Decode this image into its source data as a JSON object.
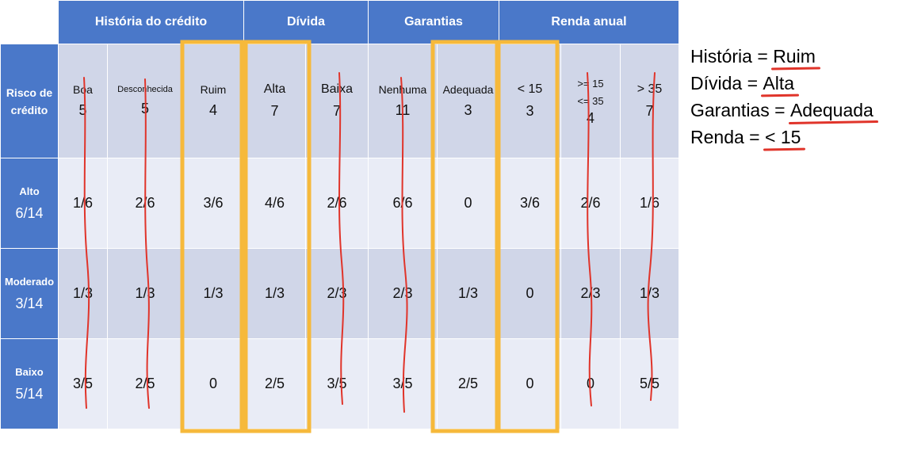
{
  "table": {
    "corner_line1": "Risco de",
    "corner_line2": "crédito",
    "groups": [
      {
        "label": "História do crédito",
        "span": 3
      },
      {
        "label": "Dívida",
        "span": 2
      },
      {
        "label": "Garantias",
        "span": 2
      },
      {
        "label": "Renda anual",
        "span": 3
      }
    ],
    "attributes": [
      {
        "name": "Boa",
        "count": "5"
      },
      {
        "name": "Desconhecida",
        "count": "5"
      },
      {
        "name": "Ruim",
        "count": "4"
      },
      {
        "name": "Alta",
        "count": "7"
      },
      {
        "name": "Baixa",
        "count": "7"
      },
      {
        "name": "Nenhuma",
        "count": "11"
      },
      {
        "name": "Adequada",
        "count": "3"
      },
      {
        "name": "< 15",
        "count": "3"
      },
      {
        "name": ">= 15",
        "name2": "<= 35",
        "count": "4"
      },
      {
        "name": "> 35",
        "count": "7"
      }
    ],
    "rows": [
      {
        "label": "Alto",
        "fraction": "6/14",
        "values": [
          "1/6",
          "2/6",
          "3/6",
          "4/6",
          "2/6",
          "6/6",
          "0",
          "3/6",
          "2/6",
          "1/6"
        ]
      },
      {
        "label": "Moderado",
        "fraction": "3/14",
        "values": [
          "1/3",
          "1/3",
          "1/3",
          "1/3",
          "2/3",
          "2/3",
          "1/3",
          "0",
          "2/3",
          "1/3"
        ]
      },
      {
        "label": "Baixo",
        "fraction": "5/14",
        "values": [
          "3/5",
          "2/5",
          "0",
          "2/5",
          "3/5",
          "3/5",
          "2/5",
          "0",
          "0",
          "5/5"
        ]
      }
    ]
  },
  "notes": [
    {
      "key": "História",
      "value": "Ruim"
    },
    {
      "key": "Dívida",
      "value": "Alta"
    },
    {
      "key": "Garantias",
      "value": "Adequada"
    },
    {
      "key": "Renda",
      "value": "< 15"
    }
  ],
  "colors": {
    "header_blue": "#4a78c9",
    "highlight": "#f6b93b",
    "pen_red": "#e0342a"
  }
}
